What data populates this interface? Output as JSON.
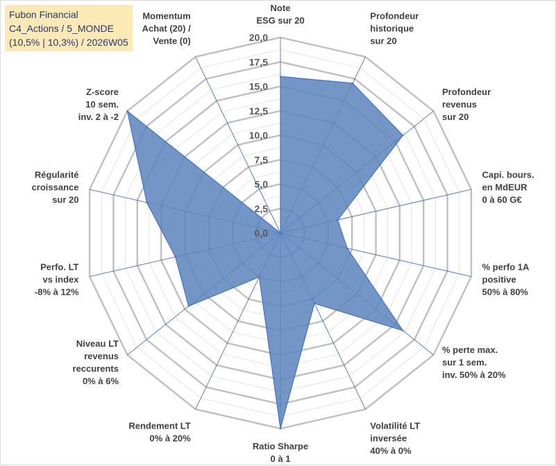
{
  "title_lines": [
    "Fubon Financial",
    "C4_Actions / 5_MONDE",
    "(10,5% | 10,3%) / 2026W05"
  ],
  "colors": {
    "fill": "#5b84bc",
    "stroke": "#4472c4",
    "grid": "#bfbfbf",
    "spoke": "#4472c4"
  },
  "chart_data": {
    "type": "radar",
    "title": "Fubon Financial",
    "range": [
      0,
      20
    ],
    "major_step": 2.5,
    "tick_labels": [
      "0,0",
      "2,5",
      "5,0",
      "7,5",
      "10,0",
      "12,5",
      "15,0",
      "17,5",
      "20,0"
    ],
    "axes": [
      {
        "label": [
          "Note",
          "ESG sur 20"
        ],
        "value": 16.0
      },
      {
        "label": [
          "Profondeur",
          "historique",
          "sur 20"
        ],
        "value": 17.0
      },
      {
        "label": [
          "Profondeur",
          "revenus",
          "sur 20"
        ],
        "value": 16.0
      },
      {
        "label": [
          "Capi. bours.",
          "en MdEUR",
          "0 à 60 G€"
        ],
        "value": 6.0
      },
      {
        "label": [
          "% perfo 1A",
          "positive",
          "50% à 80%"
        ],
        "value": 7.0
      },
      {
        "label": [
          "% perte max.",
          "sur 1 sem.",
          "inv. 50% à 20%"
        ],
        "value": 16.0
      },
      {
        "label": [
          "Volatilité LT",
          "inversée",
          "40% à 0%"
        ],
        "value": 8.0
      },
      {
        "label": [
          "Ratio Sharpe",
          "0 à 1"
        ],
        "value": 20.0
      },
      {
        "label": [
          "Rendement LT",
          "0% à 20%"
        ],
        "value": 5.0
      },
      {
        "label": [
          "Niveau LT",
          "revenus",
          "reccurents",
          "0% à 6%"
        ],
        "value": 12.0
      },
      {
        "label": [
          "Perfo. LT",
          "vs index",
          "-8% à 12%"
        ],
        "value": 11.0
      },
      {
        "label": [
          "Régularité",
          "croissance",
          "sur 20"
        ],
        "value": 14.0
      },
      {
        "label": [
          "Z-score",
          "10 sem.",
          "inv. 2 à -2"
        ],
        "value": 20.0
      },
      {
        "label": [
          "Momentum",
          "Achat (20) /",
          "Vente (0)"
        ],
        "value": 0.0
      }
    ]
  }
}
